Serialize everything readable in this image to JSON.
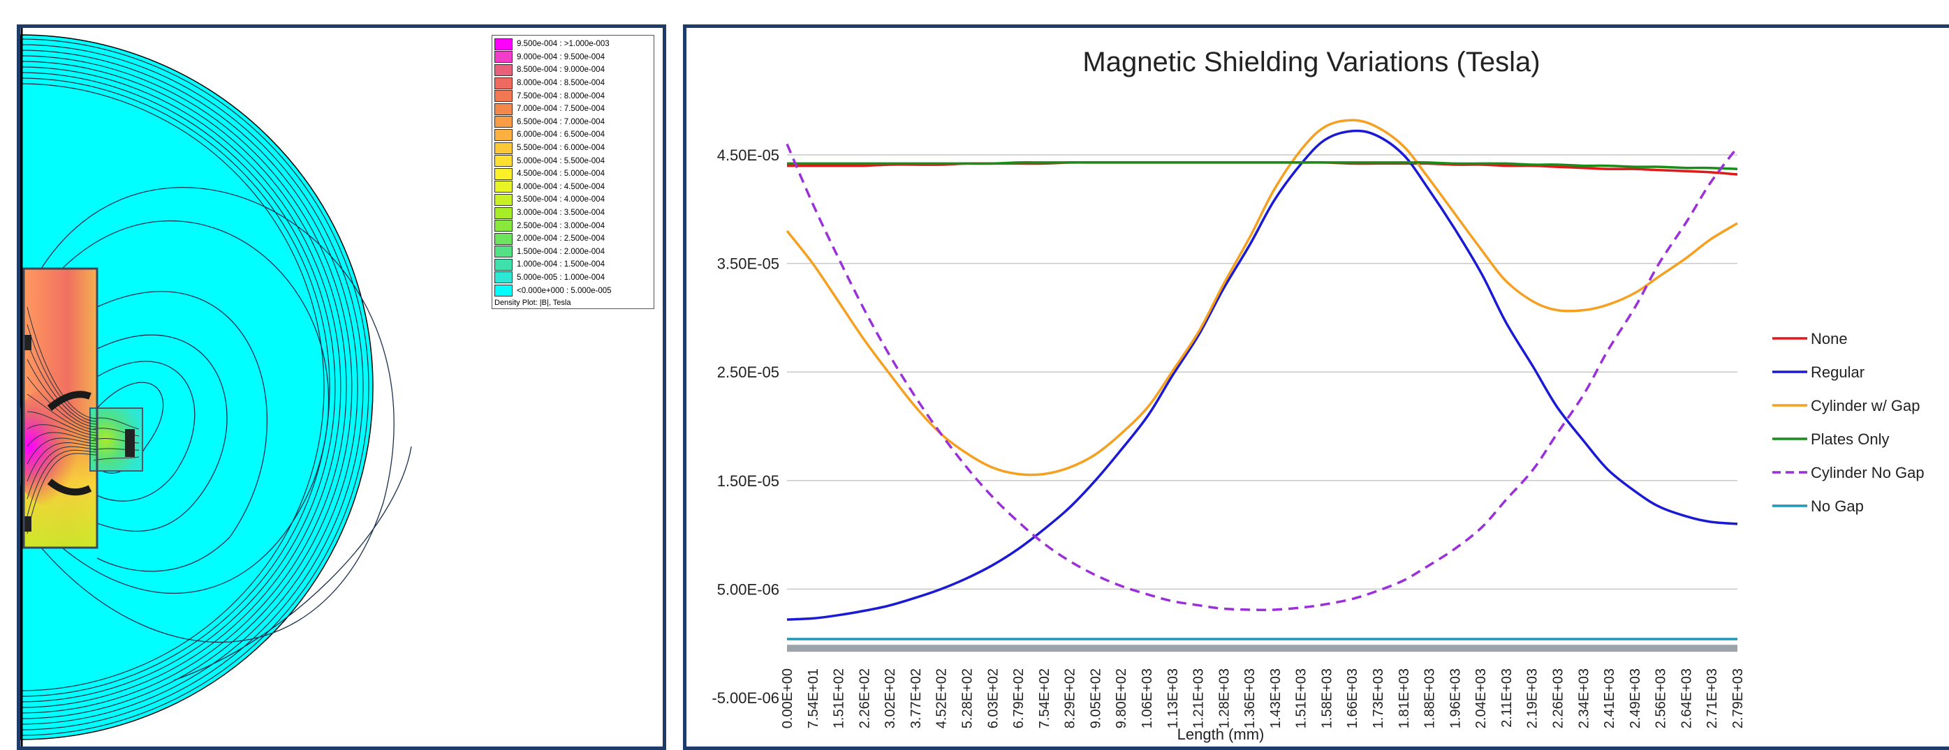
{
  "density_plot": {
    "legend_rows": [
      {
        "label": "9.500e-004 : >1.000e-003",
        "color": "#ff00ff"
      },
      {
        "label": "9.000e-004 : 9.500e-004",
        "color": "#f03ec8"
      },
      {
        "label": "8.500e-004 : 9.000e-004",
        "color": "#e8607a"
      },
      {
        "label": "8.000e-004 : 8.500e-004",
        "color": "#ee6a60"
      },
      {
        "label": "7.500e-004 : 8.000e-004",
        "color": "#f07852"
      },
      {
        "label": "7.000e-004 : 7.500e-004",
        "color": "#f4884a"
      },
      {
        "label": "6.500e-004 : 7.000e-004",
        "color": "#f89c46"
      },
      {
        "label": "6.000e-004 : 6.500e-004",
        "color": "#fbb040"
      },
      {
        "label": "5.500e-004 : 6.000e-004",
        "color": "#fcc838"
      },
      {
        "label": "5.000e-004 : 5.500e-004",
        "color": "#fde030"
      },
      {
        "label": "4.500e-004 : 5.000e-004",
        "color": "#fcf028"
      },
      {
        "label": "4.000e-004 : 4.500e-004",
        "color": "#e8f424"
      },
      {
        "label": "3.500e-004 : 4.000e-004",
        "color": "#c8f024"
      },
      {
        "label": "3.000e-004 : 3.500e-004",
        "color": "#a8ec28"
      },
      {
        "label": "2.500e-004 : 3.000e-004",
        "color": "#88e83c"
      },
      {
        "label": "2.000e-004 : 2.500e-004",
        "color": "#6ce45c"
      },
      {
        "label": "1.500e-004 : 2.000e-004",
        "color": "#54e084"
      },
      {
        "label": "1.000e-004 : 1.500e-004",
        "color": "#40e0ac"
      },
      {
        "label": "5.000e-005 : 1.000e-004",
        "color": "#2ce8d4"
      },
      {
        "label": "<0.000e+000 : 5.000e-005",
        "color": "#00ffff"
      }
    ],
    "legend_caption": "Density Plot: |B|, Tesla",
    "background_color": "#00ffff"
  },
  "chart_data": {
    "type": "line",
    "title": "Magnetic Shielding Variations (Tesla)",
    "xlabel": "Length (mm)",
    "ylabel": "",
    "y_ticks": [
      -5e-06,
      5e-06,
      1.5e-05,
      2.5e-05,
      3.5e-05,
      4.5e-05
    ],
    "y_tick_labels": [
      "-5.00E-06",
      "5.00E-06",
      "1.50E-05",
      "2.50E-05",
      "3.50E-05",
      "4.50E-05"
    ],
    "ylim": [
      -5e-06,
      4.5e-05
    ],
    "x_tick_labels": [
      "0.00E+00",
      "7.54E+01",
      "1.51E+02",
      "2.26E+02",
      "3.02E+02",
      "3.77E+02",
      "4.52E+02",
      "5.28E+02",
      "6.03E+02",
      "6.79E+02",
      "7.54E+02",
      "8.29E+02",
      "9.05E+02",
      "9.80E+02",
      "1.06E+03",
      "1.13E+03",
      "1.21E+03",
      "1.28E+03",
      "1.36E+03",
      "1.43E+03",
      "1.51E+03",
      "1.58E+03",
      "1.66E+03",
      "1.73E+03",
      "1.81E+03",
      "1.88E+03",
      "1.96E+03",
      "2.04E+03",
      "2.11E+03",
      "2.19E+03",
      "2.26E+03",
      "2.34E+03",
      "2.41E+03",
      "2.49E+03",
      "2.56E+03",
      "2.64E+03",
      "2.71E+03",
      "2.79E+03"
    ],
    "x": [
      0,
      75.4,
      151,
      226,
      302,
      377,
      452,
      528,
      603,
      679,
      754,
      829,
      905,
      980,
      1060,
      1130,
      1210,
      1280,
      1360,
      1430,
      1510,
      1580,
      1660,
      1730,
      1810,
      1880,
      1960,
      2040,
      2110,
      2190,
      2260,
      2340,
      2410,
      2490,
      2560,
      2640,
      2710,
      2790
    ],
    "grid": "horizontal",
    "legend_position": "right",
    "series": [
      {
        "name": "None",
        "color": "#e0191b",
        "dash": "solid",
        "values": [
          4.4e-05,
          4.4e-05,
          4.4e-05,
          4.4e-05,
          4.41e-05,
          4.41e-05,
          4.41e-05,
          4.42e-05,
          4.42e-05,
          4.42e-05,
          4.42e-05,
          4.43e-05,
          4.43e-05,
          4.43e-05,
          4.43e-05,
          4.43e-05,
          4.43e-05,
          4.43e-05,
          4.43e-05,
          4.43e-05,
          4.43e-05,
          4.43e-05,
          4.42e-05,
          4.42e-05,
          4.42e-05,
          4.42e-05,
          4.41e-05,
          4.41e-05,
          4.4e-05,
          4.4e-05,
          4.39e-05,
          4.38e-05,
          4.37e-05,
          4.37e-05,
          4.36e-05,
          4.35e-05,
          4.34e-05,
          4.32e-05
        ]
      },
      {
        "name": "Regular",
        "color": "#1a1ad4",
        "dash": "solid",
        "values": [
          2.2e-06,
          2.3e-06,
          2.6e-06,
          3e-06,
          3.5e-06,
          4.2e-06,
          5e-06,
          6e-06,
          7.2e-06,
          8.7e-06,
          1.05e-05,
          1.25e-05,
          1.5e-05,
          1.78e-05,
          2.1e-05,
          2.46e-05,
          2.85e-05,
          3.26e-05,
          3.68e-05,
          4.08e-05,
          4.42e-05,
          4.64e-05,
          4.72e-05,
          4.68e-05,
          4.5e-05,
          4.2e-05,
          3.82e-05,
          3.4e-05,
          2.96e-05,
          2.55e-05,
          2.18e-05,
          1.86e-05,
          1.6e-05,
          1.4e-05,
          1.26e-05,
          1.17e-05,
          1.12e-05,
          1.1e-05
        ]
      },
      {
        "name": "Cylinder w/ Gap",
        "color": "#f5a020",
        "dash": "solid",
        "values": [
          3.8e-05,
          3.5e-05,
          3.15e-05,
          2.8e-05,
          2.48e-05,
          2.18e-05,
          1.93e-05,
          1.75e-05,
          1.62e-05,
          1.56e-05,
          1.56e-05,
          1.62e-05,
          1.74e-05,
          1.93e-05,
          2.18e-05,
          2.5e-05,
          2.88e-05,
          3.3e-05,
          3.75e-05,
          4.18e-05,
          4.55e-05,
          4.76e-05,
          4.82e-05,
          4.76e-05,
          4.58e-05,
          4.3e-05,
          3.96e-05,
          3.62e-05,
          3.34e-05,
          3.15e-05,
          3.07e-05,
          3.07e-05,
          3.12e-05,
          3.23e-05,
          3.38e-05,
          3.55e-05,
          3.72e-05,
          3.87e-05
        ]
      },
      {
        "name": "Plates Only",
        "color": "#1a8c1a",
        "dash": "solid",
        "values": [
          4.42e-05,
          4.42e-05,
          4.42e-05,
          4.42e-05,
          4.42e-05,
          4.42e-05,
          4.42e-05,
          4.42e-05,
          4.42e-05,
          4.43e-05,
          4.43e-05,
          4.43e-05,
          4.43e-05,
          4.43e-05,
          4.43e-05,
          4.43e-05,
          4.43e-05,
          4.43e-05,
          4.43e-05,
          4.43e-05,
          4.43e-05,
          4.43e-05,
          4.43e-05,
          4.43e-05,
          4.43e-05,
          4.43e-05,
          4.42e-05,
          4.42e-05,
          4.42e-05,
          4.41e-05,
          4.41e-05,
          4.4e-05,
          4.4e-05,
          4.39e-05,
          4.39e-05,
          4.38e-05,
          4.38e-05,
          4.37e-05
        ]
      },
      {
        "name": "Cylinder No Gap",
        "color": "#9b30d9",
        "dash": "dashed",
        "values": [
          4.6e-05,
          4.05e-05,
          3.55e-05,
          3.08e-05,
          2.65e-05,
          2.27e-05,
          1.93e-05,
          1.62e-05,
          1.35e-05,
          1.12e-05,
          9.2e-06,
          7.6e-06,
          6.3e-06,
          5.3e-06,
          4.5e-06,
          3.9e-06,
          3.5e-06,
          3.2e-06,
          3.1e-06,
          3.1e-06,
          3.3e-06,
          3.6e-06,
          4.1e-06,
          4.8e-06,
          5.8e-06,
          7.1e-06,
          8.7e-06,
          1.07e-05,
          1.32e-05,
          1.6e-05,
          1.93e-05,
          2.3e-05,
          2.7e-05,
          3.1e-05,
          3.5e-05,
          3.88e-05,
          4.24e-05,
          4.57e-05
        ]
      },
      {
        "name": "No Gap",
        "color": "#1f97b6",
        "dash": "solid",
        "values": [
          4e-07,
          4e-07,
          4e-07,
          4e-07,
          4e-07,
          4e-07,
          4e-07,
          4e-07,
          4e-07,
          4e-07,
          4e-07,
          4e-07,
          4e-07,
          4e-07,
          4e-07,
          4e-07,
          4e-07,
          4e-07,
          4e-07,
          4e-07,
          4e-07,
          4e-07,
          4e-07,
          4e-07,
          4e-07,
          4e-07,
          4e-07,
          4e-07,
          4e-07,
          4e-07,
          4e-07,
          4e-07,
          4e-07,
          4e-07,
          4e-07,
          4e-07,
          4e-07,
          4e-07
        ]
      }
    ]
  }
}
